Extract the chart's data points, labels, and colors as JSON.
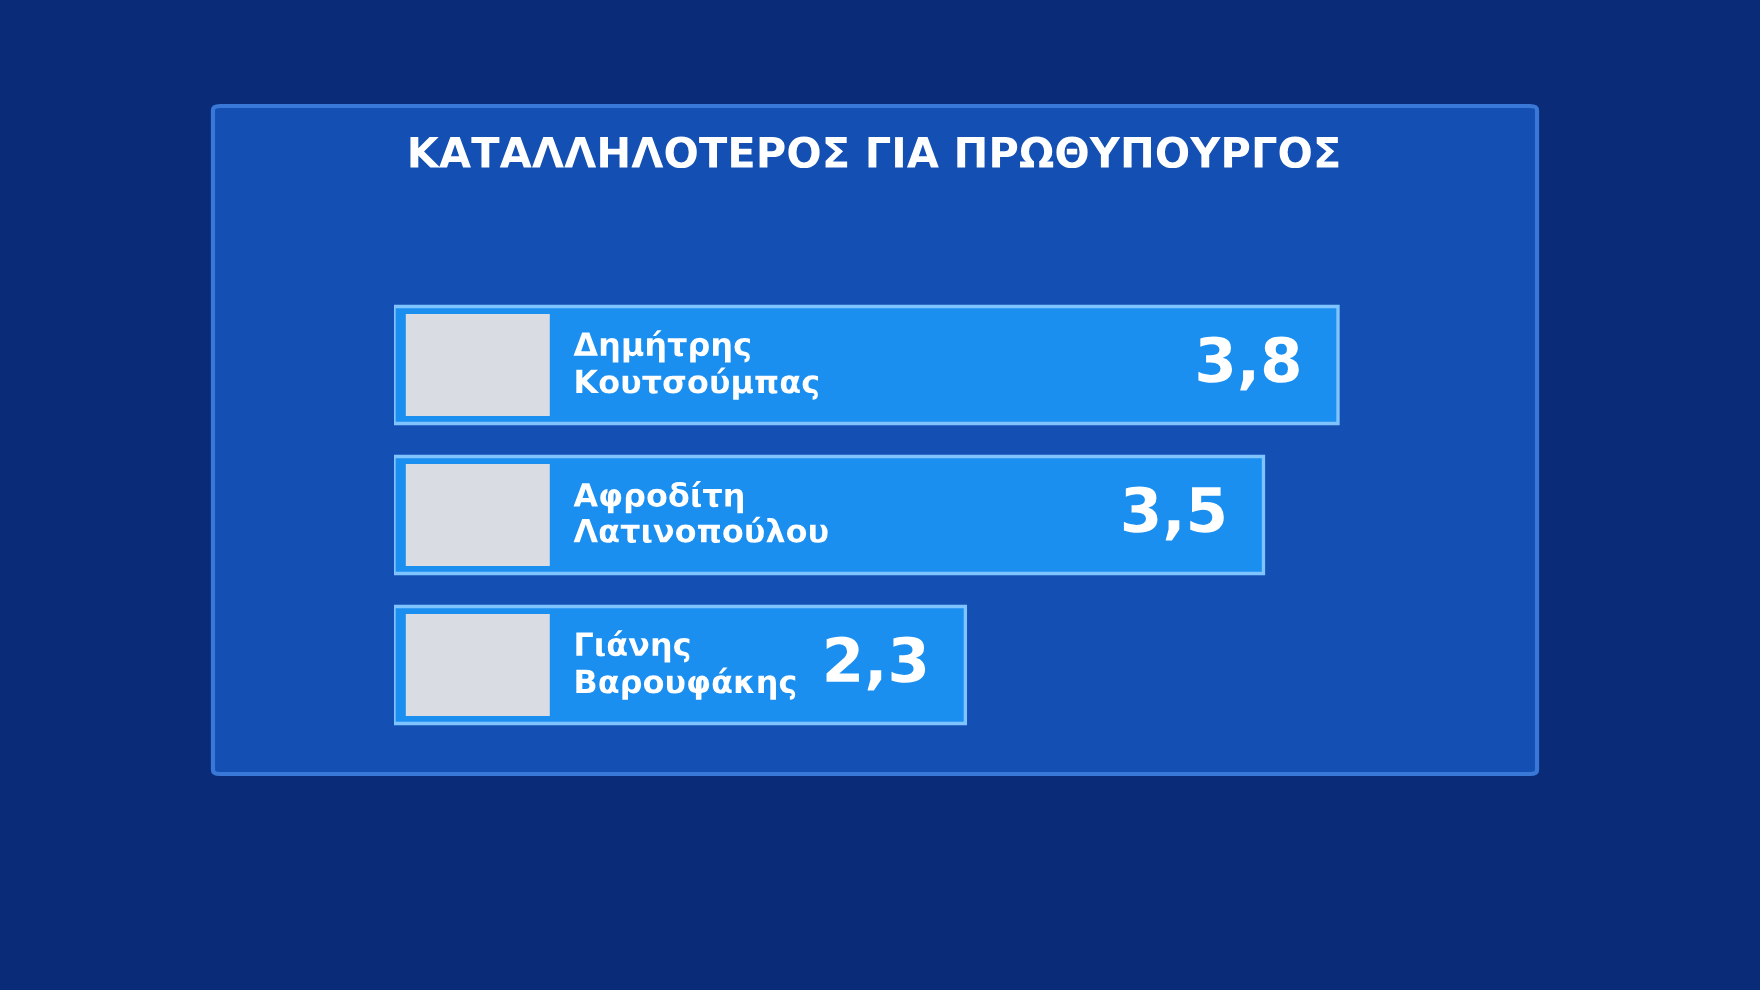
{
  "chart_data": {
    "type": "bar",
    "orientation": "horizontal",
    "title": "ΚΑΤΑΛΛΗΛΟΤΕΡΟΣ ΓΙΑ ΠΡΩΘΥΠΟΥΡΓΟΣ",
    "categories": [
      "Δημήτρης Κουτσούμπας",
      "Αφροδίτη Λατινοπούλου",
      "Γιάνης Βαρουφάκης"
    ],
    "values": [
      3.8,
      3.5,
      2.3
    ],
    "value_labels": [
      "3,8",
      "3,5",
      "2,3"
    ],
    "color": "#1b8ff0"
  }
}
